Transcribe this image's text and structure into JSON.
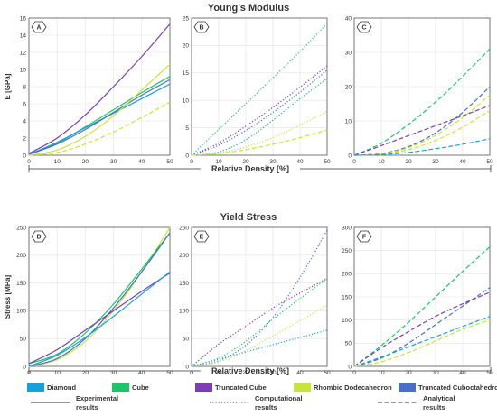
{
  "figure": {
    "row_titles": [
      "Young's Modulus",
      "Yield Stress"
    ],
    "row_xlabels": [
      "Relative Density [%]",
      "Relative Density [%]"
    ]
  },
  "colors": {
    "Diamond": "#1aa0d8",
    "Cube": "#1ec46a",
    "Truncated Cube": "#7b3fb0",
    "Rhombic Dodecahedron": "#c8e43c",
    "Truncated Cuboctahedron": "#4a6fc4"
  },
  "legend": {
    "materials": [
      "Diamond",
      "Cube",
      "Truncated Cube",
      "Rhombic Dodecahedron",
      "Truncated Cuboctahedron"
    ],
    "styles": [
      {
        "style": "solid",
        "label": "Experimental results"
      },
      {
        "style": "dotted",
        "label": "Computational results"
      },
      {
        "style": "dashed",
        "label": "Analytical results"
      }
    ]
  },
  "chart_data": [
    {
      "panel": "A",
      "type": "line",
      "line_style": "solid",
      "ylabel": "E [GPa]",
      "xlim": [
        0,
        50
      ],
      "ylim": [
        0,
        16
      ],
      "xticks": [
        0,
        10,
        20,
        30,
        40,
        50
      ],
      "yticks": [
        0,
        2,
        4,
        6,
        8,
        10,
        12,
        14,
        16
      ],
      "x": [
        0,
        10,
        20,
        30,
        40,
        50
      ],
      "series": [
        {
          "name": "Truncated Cube",
          "values": [
            0.2,
            2.0,
            4.7,
            8.0,
            11.5,
            15.3
          ]
        },
        {
          "name": "Cube",
          "values": [
            0.1,
            1.4,
            3.3,
            5.3,
            7.3,
            9.2
          ]
        },
        {
          "name": "Diamond",
          "values": [
            0.1,
            1.5,
            3.2,
            4.9,
            6.6,
            8.3
          ]
        },
        {
          "name": "Truncated Cuboctahedron",
          "values": [
            0.1,
            1.3,
            3.0,
            5.0,
            7.0,
            8.8
          ]
        },
        {
          "name": "Rhombic Dodecahedron",
          "values": [
            0.0,
            0.6,
            2.2,
            4.6,
            7.6,
            10.6
          ]
        },
        {
          "name": "Rhombic Dodecahedron",
          "style": "dashed",
          "values": [
            0.0,
            0.3,
            1.3,
            2.7,
            4.4,
            6.2
          ]
        }
      ]
    },
    {
      "panel": "B",
      "type": "line",
      "line_style": "dotted",
      "xlim": [
        0,
        50
      ],
      "ylim": [
        0,
        25
      ],
      "xticks": [
        0,
        10,
        20,
        30,
        40,
        50
      ],
      "yticks": [
        0,
        5,
        10,
        15,
        20,
        25
      ],
      "x": [
        0,
        10,
        20,
        30,
        40,
        50
      ],
      "series": [
        {
          "name": "Cube",
          "values": [
            0,
            4.7,
            9.4,
            14.1,
            18.9,
            24.0
          ]
        },
        {
          "name": "Truncated Cube",
          "values": [
            0,
            2.2,
            5.3,
            8.7,
            12.4,
            16.3
          ]
        },
        {
          "name": "Truncated Cuboctahedron",
          "values": [
            0,
            1.8,
            4.5,
            7.8,
            11.5,
            15.5
          ]
        },
        {
          "name": "Diamond",
          "values": [
            0,
            0.6,
            2.8,
            6.4,
            10.3,
            14.0
          ]
        },
        {
          "name": "Rhombic Dodecahedron",
          "values": [
            0,
            0.4,
            1.5,
            3.2,
            5.5,
            8.0
          ]
        },
        {
          "name": "Rhombic Dodecahedron",
          "style": "dashed",
          "values": [
            0,
            0.3,
            1.0,
            2.0,
            3.2,
            4.6
          ]
        }
      ]
    },
    {
      "panel": "C",
      "type": "line",
      "line_style": "dashed",
      "xlim": [
        0,
        50
      ],
      "ylim": [
        0,
        40
      ],
      "xticks": [
        0,
        10,
        20,
        30,
        40,
        50
      ],
      "yticks": [
        0,
        10,
        20,
        30,
        40
      ],
      "x": [
        0,
        10,
        20,
        30,
        40,
        50
      ],
      "series": [
        {
          "name": "Cube",
          "values": [
            0,
            3.5,
            9.0,
            15.5,
            23.0,
            31.0
          ]
        },
        {
          "name": "Truncated Cuboctahedron",
          "values": [
            0,
            0.5,
            2.5,
            6.5,
            12.5,
            20.0
          ]
        },
        {
          "name": "Rhombic Dodecahedron",
          "values": [
            0,
            0.4,
            2.2,
            5.8,
            11.0,
            17.5
          ]
        },
        {
          "name": "Truncated Cube",
          "values": [
            0,
            2.8,
            5.7,
            8.6,
            11.5,
            14.5
          ]
        },
        {
          "name": "Rhombic Dodecahedron",
          "values": [
            0,
            0.3,
            1.6,
            4.3,
            8.2,
            13.0
          ]
        },
        {
          "name": "Diamond",
          "values": [
            0,
            0.2,
            0.8,
            1.9,
            3.2,
            4.8
          ]
        }
      ]
    },
    {
      "panel": "D",
      "type": "line",
      "line_style": "solid",
      "ylabel": "Stress [MPa]",
      "xlim": [
        0,
        50
      ],
      "ylim": [
        0,
        250
      ],
      "xticks": [
        0,
        10,
        20,
        30,
        40,
        50
      ],
      "yticks": [
        0,
        50,
        100,
        150,
        200,
        250
      ],
      "x": [
        0,
        10,
        20,
        30,
        40,
        50
      ],
      "series": [
        {
          "name": "Rhombic Dodecahedron",
          "values": [
            0,
            12,
            45,
            100,
            170,
            250
          ]
        },
        {
          "name": "Cube",
          "values": [
            5,
            22,
            60,
            112,
            175,
            240
          ]
        },
        {
          "name": "Truncated Cuboctahedron",
          "values": [
            0,
            14,
            50,
            105,
            170,
            240
          ]
        },
        {
          "name": "Truncated Cube",
          "values": [
            5,
            30,
            65,
            100,
            135,
            168
          ]
        },
        {
          "name": "Diamond",
          "values": [
            0,
            20,
            52,
            90,
            130,
            170
          ]
        }
      ]
    },
    {
      "panel": "E",
      "type": "line",
      "line_style": "dotted",
      "xlim": [
        0,
        50
      ],
      "ylim": [
        0,
        250
      ],
      "xticks": [
        0,
        10,
        20,
        30,
        40,
        50
      ],
      "yticks": [
        0,
        50,
        100,
        150,
        200,
        250
      ],
      "x": [
        0,
        10,
        20,
        30,
        40,
        50
      ],
      "series": [
        {
          "name": "Truncated Cuboctahedron",
          "values": [
            0,
            10,
            38,
            88,
            160,
            245
          ]
        },
        {
          "name": "Truncated Cube",
          "values": [
            0,
            40,
            72,
            105,
            132,
            158
          ]
        },
        {
          "name": "Cube",
          "values": [
            0,
            15,
            45,
            85,
            122,
            158
          ]
        },
        {
          "name": "Rhombic Dodecahedron",
          "values": [
            0,
            8,
            28,
            55,
            82,
            110
          ]
        },
        {
          "name": "Diamond",
          "values": [
            0,
            13,
            26,
            39,
            52,
            65
          ]
        }
      ]
    },
    {
      "panel": "F",
      "type": "line",
      "line_style": "dashed",
      "xlim": [
        0,
        50
      ],
      "ylim": [
        0,
        300
      ],
      "xticks": [
        0,
        10,
        20,
        30,
        40,
        50
      ],
      "yticks": [
        0,
        50,
        100,
        150,
        200,
        250,
        300
      ],
      "x": [
        0,
        10,
        20,
        30,
        40,
        50
      ],
      "series": [
        {
          "name": "Cube",
          "values": [
            0,
            45,
            95,
            150,
            205,
            258
          ]
        },
        {
          "name": "Truncated Cuboctahedron",
          "values": [
            0,
            18,
            50,
            90,
            130,
            170
          ]
        },
        {
          "name": "Truncated Cube",
          "values": [
            0,
            40,
            75,
            108,
            135,
            160
          ]
        },
        {
          "name": "Diamond",
          "values": [
            0,
            20,
            42,
            64,
            86,
            108
          ]
        },
        {
          "name": "Rhombic Dodecahedron",
          "values": [
            0,
            10,
            30,
            55,
            80,
            100
          ]
        }
      ]
    }
  ]
}
